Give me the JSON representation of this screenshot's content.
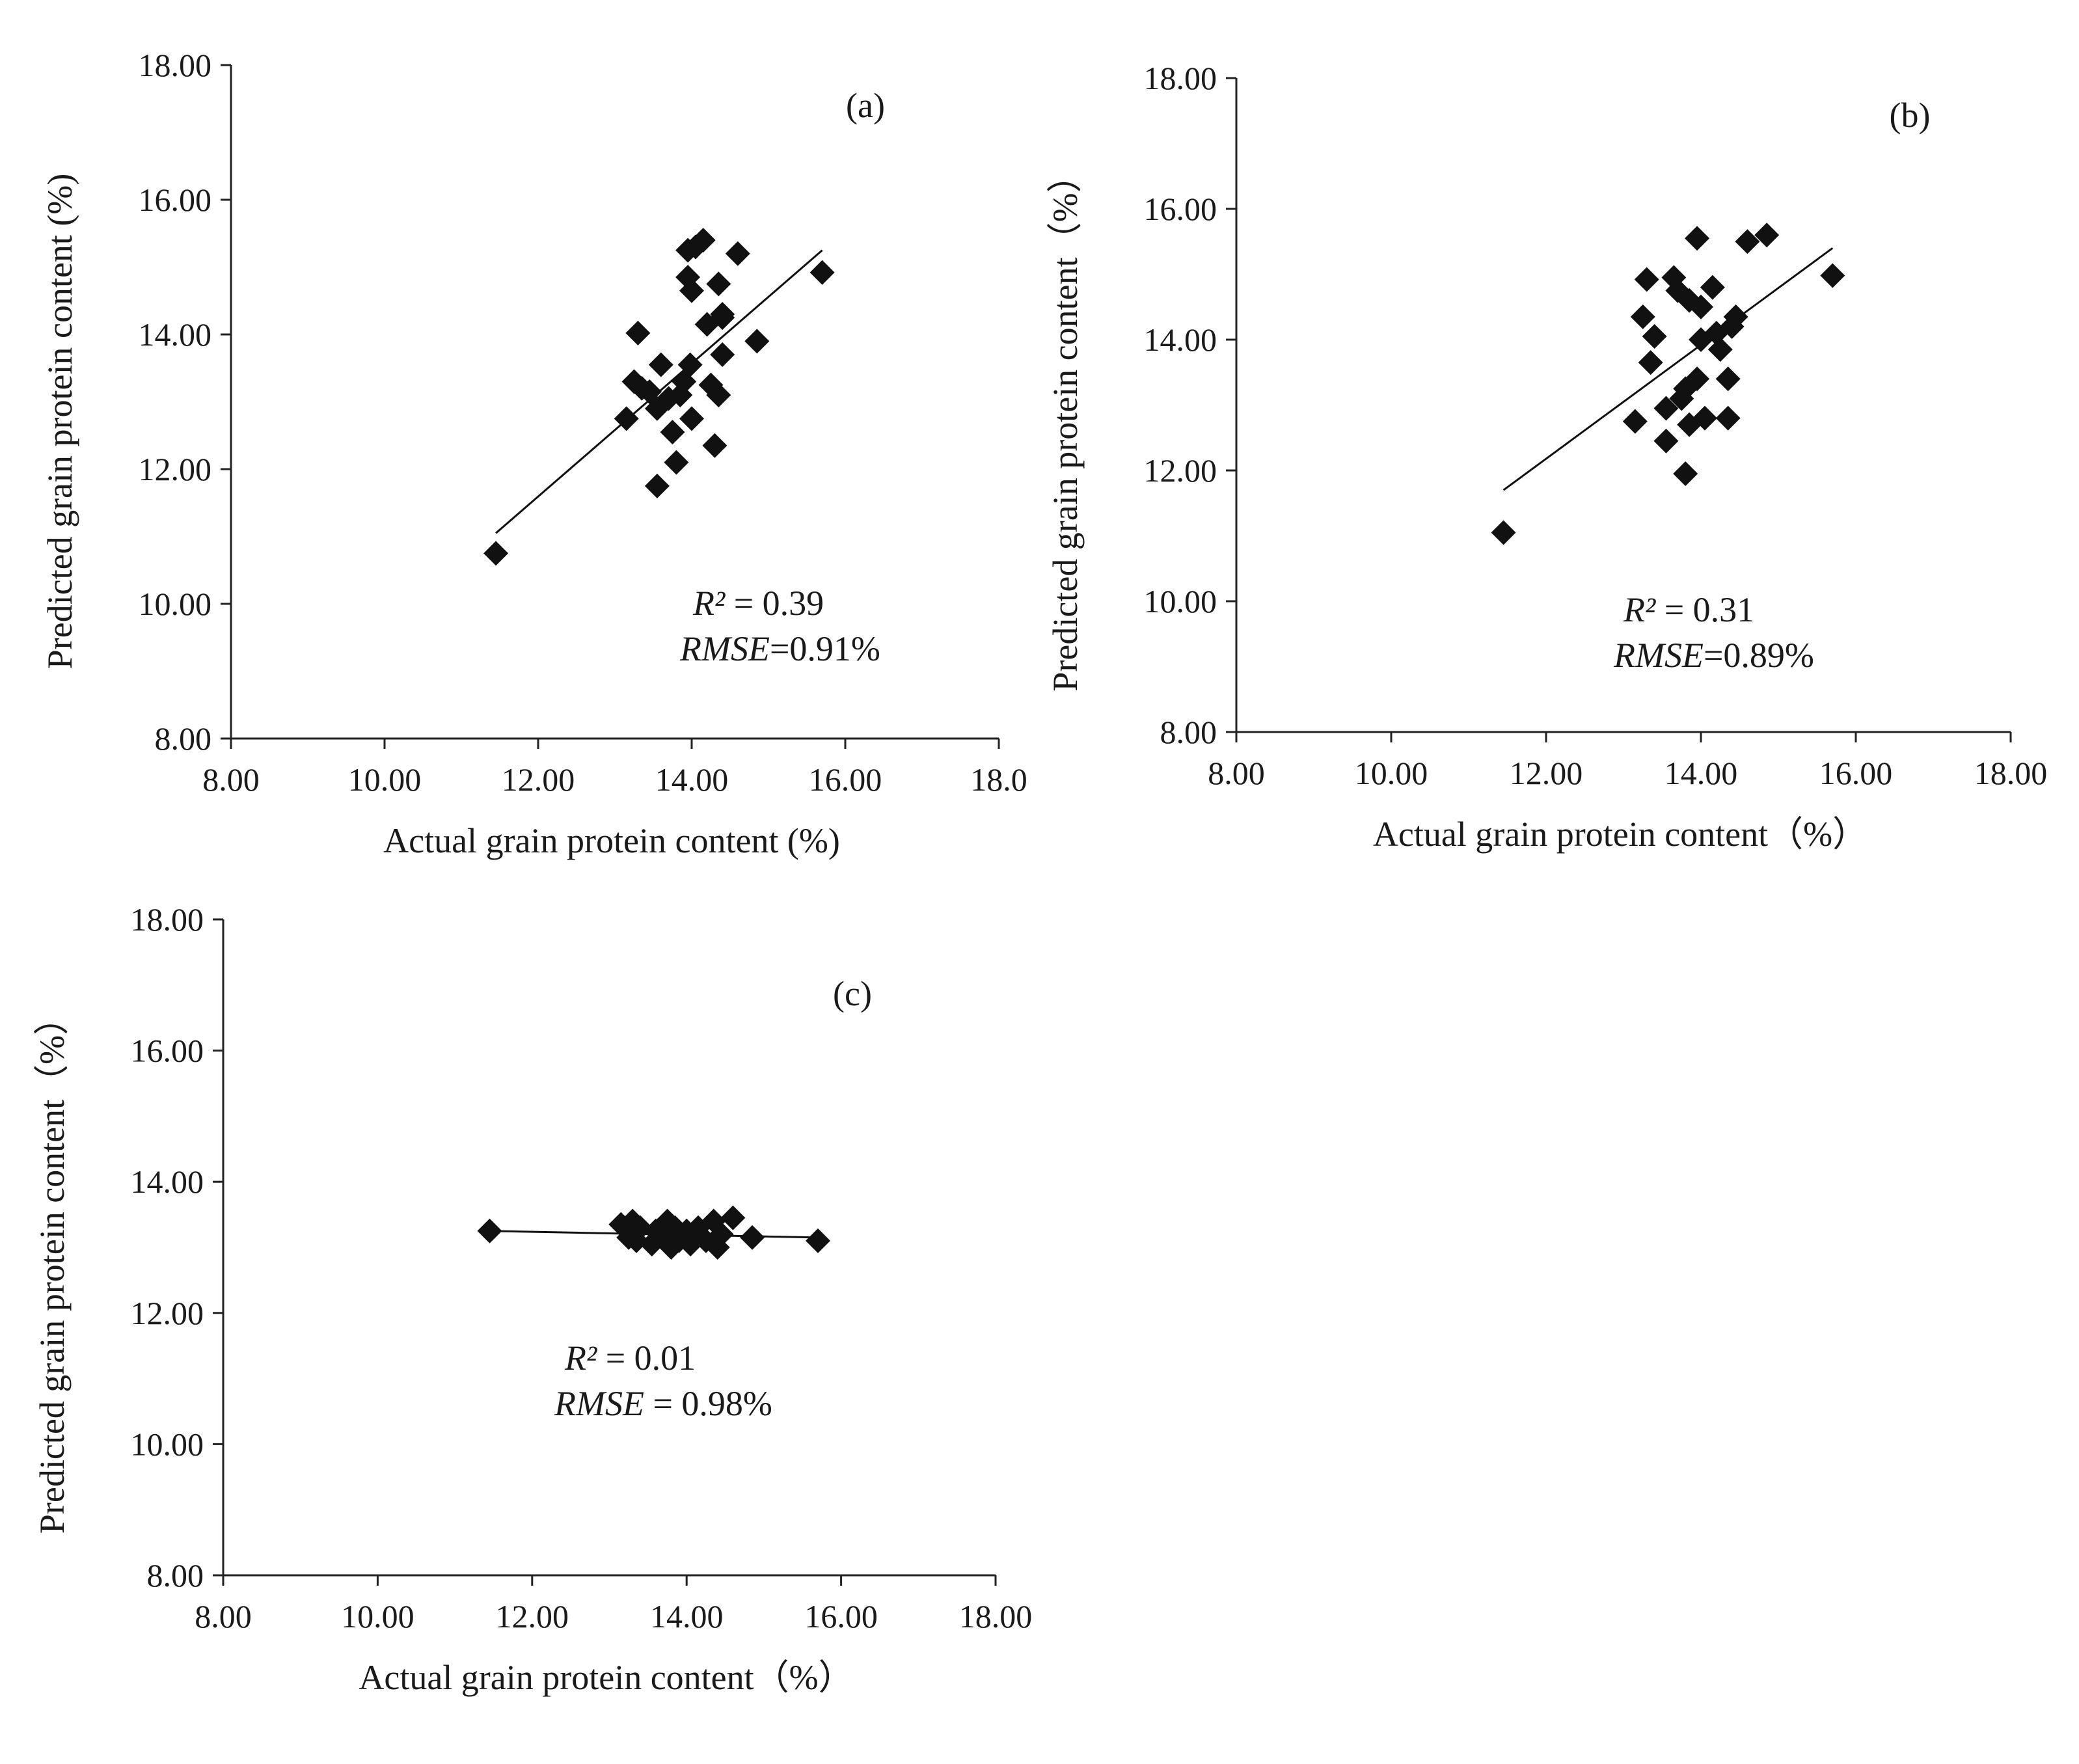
{
  "figure": {
    "background": "#ffffff",
    "marker_color": "#111111",
    "line_color": "#111111"
  },
  "chart_data": [
    {
      "type": "scatter",
      "panel_label": "(a)",
      "xlabel": "Actual grain protein content (%)",
      "ylabel": "Predicted grain protein content (%)",
      "x_ticks": [
        "8.00",
        "10.00",
        "12.00",
        "14.00",
        "16.00",
        "18.0"
      ],
      "y_ticks": [
        "8.00",
        "10.00",
        "12.00",
        "14.00",
        "16.00",
        "18.00"
      ],
      "xlim": [
        8,
        18
      ],
      "ylim": [
        8,
        18
      ],
      "r2_label": "R²",
      "r2_value": " = 0.39",
      "rmse_label": "RMSE",
      "rmse_value": "=0.91%",
      "trendline": {
        "x": [
          11.45,
          15.7
        ],
        "y": [
          11.05,
          15.25
        ]
      },
      "points": [
        {
          "x": 11.45,
          "y": 10.75
        },
        {
          "x": 13.15,
          "y": 12.75
        },
        {
          "x": 13.25,
          "y": 13.3
        },
        {
          "x": 13.3,
          "y": 14.02
        },
        {
          "x": 13.35,
          "y": 13.2
        },
        {
          "x": 13.45,
          "y": 13.15
        },
        {
          "x": 13.55,
          "y": 12.9
        },
        {
          "x": 13.55,
          "y": 11.75
        },
        {
          "x": 13.6,
          "y": 13.55
        },
        {
          "x": 13.7,
          "y": 13.05
        },
        {
          "x": 13.75,
          "y": 12.55
        },
        {
          "x": 13.8,
          "y": 12.1
        },
        {
          "x": 13.85,
          "y": 13.1
        },
        {
          "x": 13.9,
          "y": 13.3
        },
        {
          "x": 13.95,
          "y": 14.85
        },
        {
          "x": 13.95,
          "y": 15.25
        },
        {
          "x": 13.98,
          "y": 13.55
        },
        {
          "x": 14.0,
          "y": 12.75
        },
        {
          "x": 14.0,
          "y": 14.65
        },
        {
          "x": 14.05,
          "y": 15.3
        },
        {
          "x": 14.15,
          "y": 15.4
        },
        {
          "x": 14.2,
          "y": 14.15
        },
        {
          "x": 14.25,
          "y": 13.25
        },
        {
          "x": 14.3,
          "y": 12.35
        },
        {
          "x": 14.35,
          "y": 14.75
        },
        {
          "x": 14.35,
          "y": 13.1
        },
        {
          "x": 14.4,
          "y": 14.3
        },
        {
          "x": 14.4,
          "y": 13.7
        },
        {
          "x": 14.4,
          "y": 14.25
        },
        {
          "x": 14.6,
          "y": 15.2
        },
        {
          "x": 14.85,
          "y": 13.9
        },
        {
          "x": 15.7,
          "y": 14.92
        }
      ]
    },
    {
      "type": "scatter",
      "panel_label": "(b)",
      "xlabel": "Actual grain protein content（%）",
      "ylabel": "Predicted grain protein content（%）",
      "x_ticks": [
        "8.00",
        "10.00",
        "12.00",
        "14.00",
        "16.00",
        "18.00"
      ],
      "y_ticks": [
        "8.00",
        "10.00",
        "12.00",
        "14.00",
        "16.00",
        "18.00"
      ],
      "xlim": [
        8,
        18
      ],
      "ylim": [
        8,
        18
      ],
      "r2_label": "R²",
      "r2_value": " = 0.31",
      "rmse_label": "RMSE",
      "rmse_value": "=0.89%",
      "trendline": {
        "x": [
          11.45,
          15.7
        ],
        "y": [
          11.7,
          15.4
        ]
      },
      "points": [
        {
          "x": 11.45,
          "y": 11.05
        },
        {
          "x": 13.15,
          "y": 12.75
        },
        {
          "x": 13.25,
          "y": 14.35
        },
        {
          "x": 13.3,
          "y": 14.92
        },
        {
          "x": 13.35,
          "y": 13.65
        },
        {
          "x": 13.4,
          "y": 14.05
        },
        {
          "x": 13.55,
          "y": 12.95
        },
        {
          "x": 13.55,
          "y": 12.45
        },
        {
          "x": 13.65,
          "y": 14.95
        },
        {
          "x": 13.7,
          "y": 14.75
        },
        {
          "x": 13.75,
          "y": 13.1
        },
        {
          "x": 13.8,
          "y": 11.95
        },
        {
          "x": 13.8,
          "y": 13.25
        },
        {
          "x": 13.85,
          "y": 12.7
        },
        {
          "x": 13.85,
          "y": 14.6
        },
        {
          "x": 13.95,
          "y": 13.4
        },
        {
          "x": 13.95,
          "y": 15.55
        },
        {
          "x": 14.0,
          "y": 14.0
        },
        {
          "x": 14.0,
          "y": 14.5
        },
        {
          "x": 14.05,
          "y": 12.8
        },
        {
          "x": 14.15,
          "y": 14.8
        },
        {
          "x": 14.2,
          "y": 14.1
        },
        {
          "x": 14.25,
          "y": 13.85
        },
        {
          "x": 14.35,
          "y": 13.4
        },
        {
          "x": 14.35,
          "y": 12.8
        },
        {
          "x": 14.4,
          "y": 14.2
        },
        {
          "x": 14.45,
          "y": 14.35
        },
        {
          "x": 14.6,
          "y": 15.5
        },
        {
          "x": 14.85,
          "y": 15.6
        },
        {
          "x": 15.7,
          "y": 14.98
        }
      ]
    },
    {
      "type": "scatter",
      "panel_label": "(c)",
      "xlabel": "Actual grain protein content（%）",
      "ylabel": "Predicted grain protein content（%）",
      "x_ticks": [
        "8.00",
        "10.00",
        "12.00",
        "14.00",
        "16.00",
        "18.00"
      ],
      "y_ticks": [
        "8.00",
        "10.00",
        "12.00",
        "14.00",
        "16.00",
        "18.00"
      ],
      "xlim": [
        8,
        18
      ],
      "ylim": [
        8,
        18
      ],
      "r2_label": "R²",
      "r2_value": " = 0.01",
      "rmse_label": "RMSE",
      "rmse_value": " = 0.98%",
      "trendline": {
        "x": [
          11.45,
          15.7
        ],
        "y": [
          13.25,
          13.15
        ]
      },
      "points": [
        {
          "x": 11.45,
          "y": 13.25
        },
        {
          "x": 13.15,
          "y": 13.35
        },
        {
          "x": 13.25,
          "y": 13.15
        },
        {
          "x": 13.3,
          "y": 13.4
        },
        {
          "x": 13.35,
          "y": 13.1
        },
        {
          "x": 13.4,
          "y": 13.3
        },
        {
          "x": 13.55,
          "y": 13.05
        },
        {
          "x": 13.6,
          "y": 13.25
        },
        {
          "x": 13.7,
          "y": 13.15
        },
        {
          "x": 13.75,
          "y": 13.4
        },
        {
          "x": 13.8,
          "y": 13.0
        },
        {
          "x": 13.85,
          "y": 13.3
        },
        {
          "x": 13.9,
          "y": 13.1
        },
        {
          "x": 14.0,
          "y": 13.25
        },
        {
          "x": 14.05,
          "y": 13.05
        },
        {
          "x": 14.15,
          "y": 13.3
        },
        {
          "x": 14.25,
          "y": 13.1
        },
        {
          "x": 14.35,
          "y": 13.4
        },
        {
          "x": 14.4,
          "y": 13.0
        },
        {
          "x": 14.45,
          "y": 13.2
        },
        {
          "x": 14.6,
          "y": 13.45
        },
        {
          "x": 14.85,
          "y": 13.15
        },
        {
          "x": 15.7,
          "y": 13.1
        }
      ]
    }
  ]
}
